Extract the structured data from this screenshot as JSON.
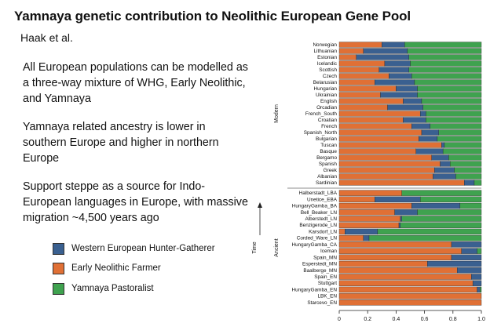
{
  "title": "Yamnaya genetic contribution to Neolithic European Gene Pool",
  "subtitle": "Haak et al.",
  "paragraphs": [
    "All European populations can be modelled as a three-way mixture of WHG, Early Neolithic, and Yamnaya",
    "Yamnaya related ancestry is lower in southern Europe and higher in northern Europe",
    "Support steppe as a source for Indo-European languages in Europe, with massive migration ~4,500 years ago"
  ],
  "legend": [
    {
      "label": "Western European Hunter-Gatherer",
      "color": "#3a6090"
    },
    {
      "label": "Early Neolithic Farmer",
      "color": "#e07035"
    },
    {
      "label": "Yamnaya Pastoralist",
      "color": "#3fa24f"
    }
  ],
  "chart_data": {
    "type": "bar",
    "orientation": "horizontal",
    "stacked": true,
    "series_order": [
      "Early Neolithic Farmer",
      "Western European Hunter-Gatherer",
      "Yamnaya Pastoralist"
    ],
    "colors": [
      "#e07035",
      "#3a6090",
      "#3fa24f"
    ],
    "xlim": [
      0,
      1
    ],
    "xticks": [
      "0",
      "0.2",
      "0.4",
      "0.6",
      "0.8",
      "1.0"
    ],
    "axis_label_time": "Time",
    "groups": [
      {
        "name": "Modern",
        "rows": [
          {
            "label": "Norwegian",
            "values": [
              0.3,
              0.16,
              0.54
            ]
          },
          {
            "label": "Lithuanian",
            "values": [
              0.17,
              0.31,
              0.52
            ]
          },
          {
            "label": "Estonian",
            "values": [
              0.12,
              0.37,
              0.51
            ]
          },
          {
            "label": "Icelandic",
            "values": [
              0.32,
              0.18,
              0.5
            ]
          },
          {
            "label": "Scottish",
            "values": [
              0.28,
              0.21,
              0.51
            ]
          },
          {
            "label": "Czech",
            "values": [
              0.35,
              0.16,
              0.49
            ]
          },
          {
            "label": "Belarusian",
            "values": [
              0.25,
              0.28,
              0.47
            ]
          },
          {
            "label": "Hungarian",
            "values": [
              0.4,
              0.15,
              0.45
            ]
          },
          {
            "label": "Ukrainian",
            "values": [
              0.29,
              0.26,
              0.45
            ]
          },
          {
            "label": "English",
            "values": [
              0.45,
              0.13,
              0.42
            ]
          },
          {
            "label": "Orcadian",
            "values": [
              0.34,
              0.25,
              0.41
            ]
          },
          {
            "label": "French_South",
            "values": [
              0.57,
              0.04,
              0.39
            ]
          },
          {
            "label": "Croatian",
            "values": [
              0.45,
              0.16,
              0.39
            ]
          },
          {
            "label": "French",
            "values": [
              0.51,
              0.13,
              0.36
            ]
          },
          {
            "label": "Spanish_North",
            "values": [
              0.58,
              0.12,
              0.3
            ]
          },
          {
            "label": "Bulgarian",
            "values": [
              0.56,
              0.13,
              0.31
            ]
          },
          {
            "label": "Tuscan",
            "values": [
              0.72,
              0.02,
              0.26
            ]
          },
          {
            "label": "Basque",
            "values": [
              0.54,
              0.19,
              0.27
            ]
          },
          {
            "label": "Bergamo",
            "values": [
              0.65,
              0.12,
              0.23
            ]
          },
          {
            "label": "Spanish",
            "values": [
              0.71,
              0.07,
              0.22
            ]
          },
          {
            "label": "Greek",
            "values": [
              0.67,
              0.14,
              0.19
            ]
          },
          {
            "label": "Albanian",
            "values": [
              0.66,
              0.16,
              0.18
            ]
          },
          {
            "label": "Sardinian",
            "values": [
              0.88,
              0.07,
              0.05
            ]
          }
        ]
      },
      {
        "name": "Ancient",
        "rows": [
          {
            "label": "Halberstadt_LBA",
            "values": [
              0.44,
              0.0,
              0.56
            ]
          },
          {
            "label": "Unetice_EBA",
            "values": [
              0.25,
              0.32,
              0.43
            ]
          },
          {
            "label": "HungaryGamba_BA",
            "values": [
              0.51,
              0.34,
              0.15
            ]
          },
          {
            "label": "Bell_Beaker_LN",
            "values": [
              0.39,
              0.16,
              0.45
            ]
          },
          {
            "label": "Alberstedt_LN",
            "values": [
              0.43,
              0.01,
              0.56
            ]
          },
          {
            "label": "Benzigerode_LN",
            "values": [
              0.42,
              0.01,
              0.57
            ]
          },
          {
            "label": "Karsdorf_LN",
            "values": [
              0.04,
              0.23,
              0.73
            ]
          },
          {
            "label": "Corded_Ware_LN",
            "values": [
              0.17,
              0.04,
              0.79
            ]
          },
          {
            "label": "HungaryGamba_CA",
            "values": [
              0.79,
              0.21,
              0.0
            ]
          },
          {
            "label": "Iceman",
            "values": [
              0.86,
              0.11,
              0.03
            ]
          },
          {
            "label": "Spain_MN",
            "values": [
              0.79,
              0.21,
              0.0
            ]
          },
          {
            "label": "Esperstedt_MN",
            "values": [
              0.62,
              0.38,
              0.0
            ]
          },
          {
            "label": "Baalberge_MN",
            "values": [
              0.83,
              0.17,
              0.0
            ]
          },
          {
            "label": "Spain_EN",
            "values": [
              0.93,
              0.07,
              0.0
            ]
          },
          {
            "label": "Stuttgart",
            "values": [
              0.94,
              0.06,
              0.0
            ]
          },
          {
            "label": "HungaryGamba_EN",
            "values": [
              0.97,
              0.02,
              0.01
            ]
          },
          {
            "label": "LBK_EN",
            "values": [
              1.0,
              0.0,
              0.0
            ]
          },
          {
            "label": "Starcevo_EN",
            "values": [
              1.0,
              0.0,
              0.0
            ]
          }
        ]
      }
    ]
  }
}
